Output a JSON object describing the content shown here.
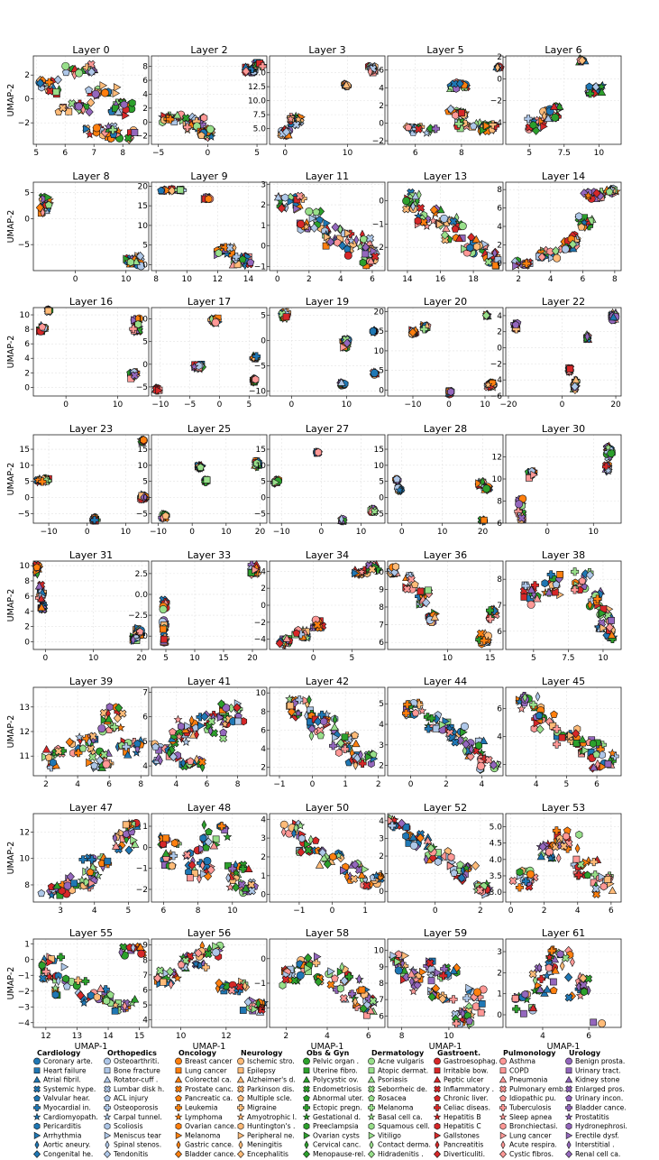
{
  "chart_data": {
    "type": "scatter",
    "ylabel": "UMAP-2",
    "xlabel": "UMAP-1",
    "grid": true,
    "legend_placement": "bottom",
    "panels": [
      {
        "title": "Layer 0",
        "xticks": [
          5,
          6,
          7,
          8
        ],
        "xlim": [
          4.9,
          8.9
        ],
        "yticks": [
          -2,
          0,
          2
        ],
        "ylim": [
          -3.8,
          3.6
        ]
      },
      {
        "title": "Layer 2",
        "xticks": [
          -5,
          0,
          5
        ],
        "xlim": [
          -5.7,
          6
        ],
        "yticks": [
          -2,
          0,
          2,
          4,
          6,
          8
        ],
        "ylim": [
          -3.2,
          9.5
        ]
      },
      {
        "title": "Layer 3",
        "xticks": [
          0,
          10
        ],
        "xlim": [
          -2.5,
          16
        ],
        "yticks": [
          5.0,
          7.5,
          10.0,
          12.5,
          15.0
        ],
        "ylim": [
          2.2,
          18
        ]
      },
      {
        "title": "Layer 5",
        "xticks": [
          6,
          8
        ],
        "xlim": [
          4.8,
          9.8
        ],
        "yticks": [
          -2,
          0,
          2,
          4,
          6
        ],
        "ylim": [
          -2.4,
          7.6
        ]
      },
      {
        "title": "Layer 6",
        "xticks": [
          5.0,
          7.5,
          10.0
        ],
        "xlim": [
          3.3,
          11.6
        ],
        "yticks": [
          -4,
          -2,
          0,
          2
        ],
        "ylim": [
          -6,
          2.1
        ]
      },
      {
        "title": "Layer 8",
        "xticks": [
          0,
          10
        ],
        "xlim": [
          -8.3,
          14.5
        ],
        "yticks": [
          -5,
          0,
          5
        ],
        "ylim": [
          -10,
          7
        ]
      },
      {
        "title": "Layer 9",
        "xticks": [
          8,
          10,
          12,
          14
        ],
        "xlim": [
          7.7,
          15.2
        ],
        "yticks": [
          0,
          5,
          10,
          15,
          20
        ],
        "ylim": [
          -1.5,
          21
        ]
      },
      {
        "title": "Layer 11",
        "xticks": [
          0,
          2,
          4,
          6
        ],
        "xlim": [
          -0.5,
          6.8
        ],
        "yticks": [
          -1,
          0,
          1,
          2,
          3
        ],
        "ylim": [
          -1.2,
          3.1
        ]
      },
      {
        "title": "Layer 13",
        "xticks": [
          14,
          16,
          18
        ],
        "xlim": [
          12.8,
          19.8
        ],
        "yticks": [
          -2,
          -1,
          0
        ],
        "ylim": [
          -3,
          0.8
        ]
      },
      {
        "title": "Layer 14",
        "xticks": [
          2,
          4,
          6,
          8
        ],
        "xlim": [
          1.2,
          8.4
        ],
        "yticks": [
          0,
          2,
          4,
          6,
          8
        ],
        "ylim": [
          -0.8,
          8.8
        ]
      },
      {
        "title": "Layer 16",
        "xticks": [
          0,
          10
        ],
        "xlim": [
          -6.3,
          16
        ],
        "yticks": [
          0,
          2,
          4,
          6,
          8,
          10
        ],
        "ylim": [
          -1.2,
          11
        ]
      },
      {
        "title": "Layer 17",
        "xticks": [
          -10,
          -5,
          0,
          5
        ],
        "xlim": [
          -11.5,
          8
        ],
        "yticks": [
          -5,
          0,
          5,
          10
        ],
        "ylim": [
          -7,
          12.5
        ]
      },
      {
        "title": "Layer 19",
        "xticks": [
          0,
          10
        ],
        "xlim": [
          -4,
          17
        ],
        "yticks": [
          -10,
          -5,
          0,
          5
        ],
        "ylim": [
          -11,
          6.5
        ]
      },
      {
        "title": "Layer 20",
        "xticks": [
          -10,
          0,
          10
        ],
        "xlim": [
          -17,
          15
        ],
        "yticks": [
          0,
          5,
          10,
          15,
          20
        ],
        "ylim": [
          -1.5,
          21
        ]
      },
      {
        "title": "Layer 22",
        "xticks": [
          -20,
          0,
          20
        ],
        "xlim": [
          -21,
          22
        ],
        "yticks": [
          -6,
          -4,
          -2,
          0,
          2,
          4
        ],
        "ylim": [
          -6,
          5
        ]
      },
      {
        "title": "Layer 23",
        "xticks": [
          -10,
          0,
          10
        ],
        "xlim": [
          -14,
          16
        ],
        "yticks": [
          -5,
          0,
          5,
          10,
          15
        ],
        "ylim": [
          -8,
          19.5
        ]
      },
      {
        "title": "Layer 25",
        "xticks": [
          -10,
          0,
          10,
          20
        ],
        "xlim": [
          -12,
          22
        ],
        "yticks": [
          -5,
          0,
          5,
          10,
          15
        ],
        "ylim": [
          -8,
          19.5
        ]
      },
      {
        "title": "Layer 27",
        "xticks": [
          -10,
          0,
          10
        ],
        "xlim": [
          -13,
          16
        ],
        "yticks": [
          -5,
          0,
          5,
          10,
          15
        ],
        "ylim": [
          -8,
          19.5
        ]
      },
      {
        "title": "Layer 28",
        "xticks": [
          0,
          10,
          20
        ],
        "xlim": [
          -3.5,
          25
        ],
        "yticks": [
          -5,
          0,
          5,
          10,
          15
        ],
        "ylim": [
          -8,
          19.5
        ]
      },
      {
        "title": "Layer 30",
        "xticks": [
          0,
          10
        ],
        "xlim": [
          -9,
          16
        ],
        "yticks": [
          6,
          8,
          10,
          12
        ],
        "ylim": [
          6,
          14
        ]
      },
      {
        "title": "Layer 31",
        "xticks": [
          0,
          10,
          20
        ],
        "xlim": [
          -2.5,
          21.5
        ],
        "yticks": [
          0,
          2,
          4,
          6,
          8,
          10
        ],
        "ylim": [
          -1,
          10.6
        ]
      },
      {
        "title": "Layer 33",
        "xticks": [
          5,
          10,
          15,
          20
        ],
        "xlim": [
          2.5,
          22.5
        ],
        "yticks": [
          -5.0,
          -2.5,
          0.0,
          2.5
        ],
        "ylim": [
          -6.6,
          4
        ]
      },
      {
        "title": "Layer 34",
        "xticks": [
          0,
          5
        ],
        "xlim": [
          -5.7,
          9.3
        ],
        "yticks": [
          -4,
          -2,
          0,
          2,
          4
        ],
        "ylim": [
          -5.2,
          5.2
        ]
      },
      {
        "title": "Layer 36",
        "xticks": [
          10,
          15
        ],
        "xlim": [
          3,
          16.5
        ],
        "yticks": [
          6,
          7,
          8,
          9,
          10
        ],
        "ylim": [
          5.6,
          10.6
        ]
      },
      {
        "title": "Layer 38",
        "xticks": [
          5.0,
          7.5,
          10.0
        ],
        "xlim": [
          3,
          11.3
        ],
        "yticks": [
          6,
          7,
          8
        ],
        "ylim": [
          5.3,
          8.7
        ]
      },
      {
        "title": "Layer 39",
        "xticks": [
          2,
          4,
          6,
          8
        ],
        "xlim": [
          1.2,
          8.5
        ],
        "yticks": [
          11,
          12,
          13
        ],
        "ylim": [
          10.2,
          13.8
        ]
      },
      {
        "title": "Layer 41",
        "xticks": [
          4,
          6,
          8
        ],
        "xlim": [
          2.4,
          9.9
        ],
        "yticks": [
          4,
          5,
          6,
          7
        ],
        "ylim": [
          3.6,
          7.2
        ]
      },
      {
        "title": "Layer 42",
        "xticks": [
          -1,
          0,
          1,
          2
        ],
        "xlim": [
          -1.3,
          2.2
        ],
        "yticks": [
          2,
          4,
          6,
          8,
          10
        ],
        "ylim": [
          1.1,
          10.6
        ]
      },
      {
        "title": "Layer 44",
        "xticks": [
          0,
          2,
          4
        ],
        "xlim": [
          -1.3,
          5.2
        ],
        "yticks": [
          2,
          3,
          4,
          5
        ],
        "ylim": [
          1.5,
          5.8
        ]
      },
      {
        "title": "Layer 45",
        "xticks": [
          4,
          5,
          6
        ],
        "xlim": [
          3,
          6.8
        ],
        "yticks": [
          2,
          4,
          6
        ],
        "ylim": [
          1.2,
          7.5
        ]
      },
      {
        "title": "Layer 47",
        "xticks": [
          3,
          4,
          5
        ],
        "xlim": [
          2.2,
          5.6
        ],
        "yticks": [
          8,
          10,
          12
        ],
        "ylim": [
          6.7,
          13.4
        ]
      },
      {
        "title": "Layer 48",
        "xticks": [
          6,
          8,
          10
        ],
        "xlim": [
          5.3,
          12
        ],
        "yticks": [
          -2,
          -1,
          0,
          1
        ],
        "ylim": [
          -2.6,
          1.6
        ]
      },
      {
        "title": "Layer 50",
        "xticks": [
          -1,
          0,
          1
        ],
        "xlim": [
          -1.9,
          1.6
        ],
        "yticks": [
          0,
          1,
          2,
          3,
          4
        ],
        "ylim": [
          -0.4,
          4.3
        ]
      },
      {
        "title": "Layer 52",
        "xticks": [
          0,
          2
        ],
        "xlim": [
          -2.1,
          3
        ],
        "yticks": [
          0,
          1,
          2,
          3,
          4
        ],
        "ylim": [
          -0.6,
          4.4
        ]
      },
      {
        "title": "Layer 53",
        "xticks": [
          0,
          2,
          4,
          6
        ],
        "xlim": [
          -0.3,
          6.6
        ],
        "yticks": [
          3.0,
          3.5,
          4.0,
          4.5,
          5.0
        ],
        "ylim": [
          2.7,
          5.4
        ]
      },
      {
        "title": "Layer 55",
        "xticks": [
          12,
          13,
          14,
          15
        ],
        "xlim": [
          11.6,
          15.3
        ],
        "yticks": [
          -4,
          -3,
          -2,
          -1,
          0,
          1
        ],
        "ylim": [
          -4.3,
          1.3
        ]
      },
      {
        "title": "Layer 56",
        "xticks": [
          10,
          12
        ],
        "xlim": [
          8.7,
          13.8
        ],
        "yticks": [
          4,
          5,
          6,
          7,
          8,
          9
        ],
        "ylim": [
          3.5,
          9.4
        ]
      },
      {
        "title": "Layer 58",
        "xticks": [
          2,
          4,
          6
        ],
        "xlim": [
          1.2,
          6.8
        ],
        "yticks": [
          -2,
          -1,
          0
        ],
        "ylim": [
          -2.8,
          0.8
        ]
      },
      {
        "title": "Layer 59",
        "xticks": [
          8,
          10
        ],
        "xlim": [
          7.4,
          12.3
        ],
        "yticks": [
          6,
          7,
          8,
          9,
          10
        ],
        "ylim": [
          5.3,
          10.7
        ]
      },
      {
        "title": "Layer 61",
        "xticks": [
          4,
          6
        ],
        "xlim": [
          2.4,
          7.4
        ],
        "yticks": [
          0,
          1,
          2,
          3
        ],
        "ylim": [
          -0.6,
          3.6
        ]
      }
    ],
    "legend_groups": [
      {
        "name": "Cardiology",
        "color": "#1f77b4",
        "items": [
          "Coronary arte.",
          "Heart failure",
          "Atrial fibril.",
          "Systemic hype.",
          "Valvular hear.",
          "Myocardial in.",
          "Cardiomyopath.",
          "Pericarditis",
          "Arrhythmia",
          "Aortic aneury.",
          "Congenital he."
        ]
      },
      {
        "name": "Orthopedics",
        "color": "#aec7e8",
        "items": [
          "Osteoarthriti.",
          "Bone fracture",
          "Rotator-cuff .",
          "Lumbar disk h.",
          "ACL injury",
          "Osteoporosis",
          "Carpal tunnel.",
          "Scoliosis",
          "Meniscus tear",
          "Spinal stenos.",
          "Tendonitis"
        ]
      },
      {
        "name": "Oncology",
        "color": "#ff7f0e",
        "items": [
          "Breast cancer",
          "Lung cancer",
          "Colorectal ca.",
          "Prostate canc.",
          "Pancreatic ca.",
          "Leukemia",
          "Lymphoma",
          "Ovarian cance.",
          "Melanoma",
          "Gastric cance.",
          "Bladder cance."
        ]
      },
      {
        "name": "Neurology",
        "color": "#ffbb78",
        "items": [
          "Ischemic stro.",
          "Epilepsy",
          "Alzheimer's d.",
          "Parkinson dis.",
          "Multiple scle.",
          "Migraine",
          "Amyotrophic l.",
          "Huntington's .",
          "Peripheral ne.",
          "Meningitis",
          "Encephalitis"
        ]
      },
      {
        "name": "Obs & Gyn",
        "color": "#2ca02c",
        "items": [
          "Pelvic organ .",
          "Uterine fibro.",
          "Polycystic ov.",
          "Endometriosis",
          "Abnormal uter.",
          "Ectopic pregn.",
          "Gestational d.",
          "Preeclampsia",
          "Ovarian cysts",
          "Cervical canc.",
          "Menopause-rel."
        ]
      },
      {
        "name": "Dermatology",
        "color": "#98df8a",
        "items": [
          "Acne vulgaris",
          "Atopic dermat.",
          "Psoriasis",
          "Seborrheic de.",
          "Rosacea",
          "Melanoma",
          "Basal cell ca.",
          "Squamous cell.",
          "Vitiligo",
          "Contact derma.",
          "Hidradenitis ."
        ]
      },
      {
        "name": "Gastroent.",
        "color": "#d62728",
        "items": [
          "Gastroesophag.",
          "Irritable bow.",
          "Peptic ulcer",
          "Inflammatory .",
          "Chronic liver.",
          "Celiac diseas.",
          "Hepatitis B",
          "Hepatitis C",
          "Gallstones",
          "Pancreatitis",
          "Diverticuliti."
        ]
      },
      {
        "name": "Pulmonology",
        "color": "#ff9896",
        "items": [
          "Asthma",
          "COPD",
          "Pneumonia",
          "Pulmonary emb.",
          "Idiopathic pu.",
          "Tuberculosis",
          "Sleep apnea",
          "Bronchiectasi.",
          "Lung cancer",
          "Acute respira.",
          "Cystic fibros."
        ]
      },
      {
        "name": "Urology",
        "color": "#9467bd",
        "items": [
          "Benign prosta.",
          "Urinary tract.",
          "Kidney stone",
          "Enlarged pros.",
          "Urinary incon.",
          "Bladder cance.",
          "Prostatitis",
          "Hydronephrosi.",
          "Erectile dysf.",
          "Interstitial .",
          "Renal cell ca."
        ]
      }
    ],
    "marker_cycle": [
      "circle",
      "square",
      "triangle-up",
      "cross-x",
      "pentagon",
      "plus",
      "star",
      "hexagon",
      "triangle-right",
      "diamond-thin",
      "diamond"
    ]
  }
}
